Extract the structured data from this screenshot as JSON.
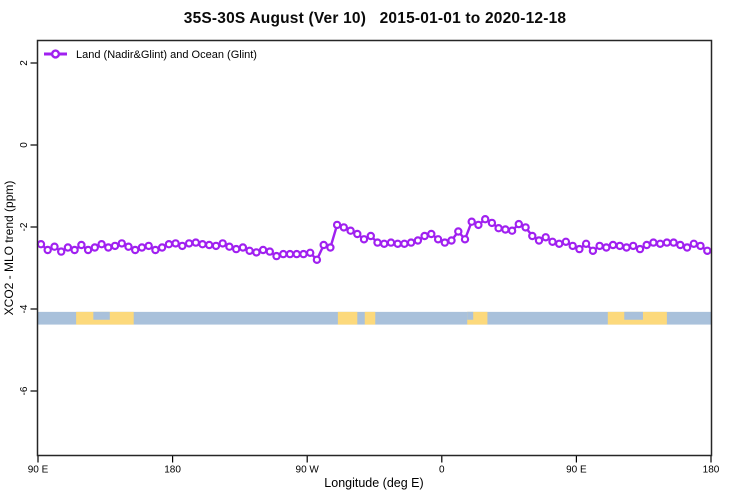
{
  "title": "35S-30S August (Ver 10)   2015-01-01 to 2020-12-18",
  "legend": {
    "label": "Land (Nadir&Glint) and Ocean (Glint)"
  },
  "colors": {
    "series": "#A020F0",
    "marker_fill": "#ffffff",
    "ocean": "#A9C1DB",
    "land": "#FCD97C",
    "axis": "#000000",
    "border": "#262626"
  },
  "chart_data": {
    "type": "line",
    "title": "35S-30S August (Ver 10)   2015-01-01 to 2020-12-18",
    "xlabel": "Longitude (deg E)",
    "ylabel": "XCO2 - MLO trend (ppm)",
    "xlim_deg": [
      90,
      540
    ],
    "ylim": [
      -7.5,
      2.55
    ],
    "grid": false,
    "legend_position": "top-left-inside",
    "x_ticks": [
      {
        "lon": 90,
        "label": "90 E"
      },
      {
        "lon": 180,
        "label": "180"
      },
      {
        "lon": 270,
        "label": "90 W"
      },
      {
        "lon": 360,
        "label": "0"
      },
      {
        "lon": 450,
        "label": "90 E"
      },
      {
        "lon": 540,
        "label": "180"
      }
    ],
    "y_ticks": [
      "2",
      "0",
      "-2",
      "-4",
      "-6"
    ],
    "y_tick_values": [
      2,
      0,
      -2,
      -4,
      -6
    ],
    "series": [
      {
        "name": "Land (Nadir&Glint) and Ocean (Glint)",
        "x_start_deg": 92,
        "x_step_deg": 4.5,
        "values": [
          -2.42,
          -2.56,
          -2.48,
          -2.6,
          -2.5,
          -2.56,
          -2.44,
          -2.56,
          -2.5,
          -2.42,
          -2.5,
          -2.46,
          -2.4,
          -2.48,
          -2.56,
          -2.5,
          -2.46,
          -2.56,
          -2.5,
          -2.42,
          -2.4,
          -2.46,
          -2.4,
          -2.38,
          -2.42,
          -2.44,
          -2.46,
          -2.4,
          -2.48,
          -2.54,
          -2.5,
          -2.58,
          -2.62,
          -2.56,
          -2.6,
          -2.71,
          -2.66,
          -2.66,
          -2.66,
          -2.66,
          -2.63,
          -2.8,
          -2.44,
          -2.5,
          -1.95,
          -2.01,
          -2.09,
          -2.17,
          -2.3,
          -2.22,
          -2.38,
          -2.41,
          -2.38,
          -2.41,
          -2.41,
          -2.38,
          -2.33,
          -2.22,
          -2.17,
          -2.3,
          -2.38,
          -2.33,
          -2.11,
          -2.3,
          -1.87,
          -1.95,
          -1.81,
          -1.9,
          -2.03,
          -2.06,
          -2.09,
          -1.93,
          -2.01,
          -2.22,
          -2.33,
          -2.25,
          -2.36,
          -2.41,
          -2.36,
          -2.46,
          -2.54,
          -2.41,
          -2.58,
          -2.46,
          -2.5,
          -2.44,
          -2.46,
          -2.5,
          -2.46,
          -2.54,
          -2.44,
          -2.38,
          -2.41,
          -2.38,
          -2.38,
          -2.44,
          -2.5,
          -2.41,
          -2.46,
          -2.58
        ]
      }
    ],
    "land_ocean_band": {
      "description": "ocean/land strip",
      "top_value": -4.07,
      "bottom_value": -4.38,
      "land_segments": [
        {
          "from_deg": 115.5,
          "to_deg": 154.0,
          "notch": {
            "from_deg": 127.0,
            "to_deg": 138.0
          }
        },
        {
          "from_deg": 290.5,
          "to_deg": 303.5
        },
        {
          "from_deg": 308.5,
          "to_deg": 315.5
        },
        {
          "from_deg": 377.0,
          "to_deg": 390.5,
          "notch": {
            "from_deg": 377.0,
            "to_deg": 381.0
          }
        },
        {
          "from_deg": 471.0,
          "to_deg": 510.5,
          "notch": {
            "from_deg": 482.0,
            "to_deg": 494.5
          }
        }
      ]
    }
  }
}
